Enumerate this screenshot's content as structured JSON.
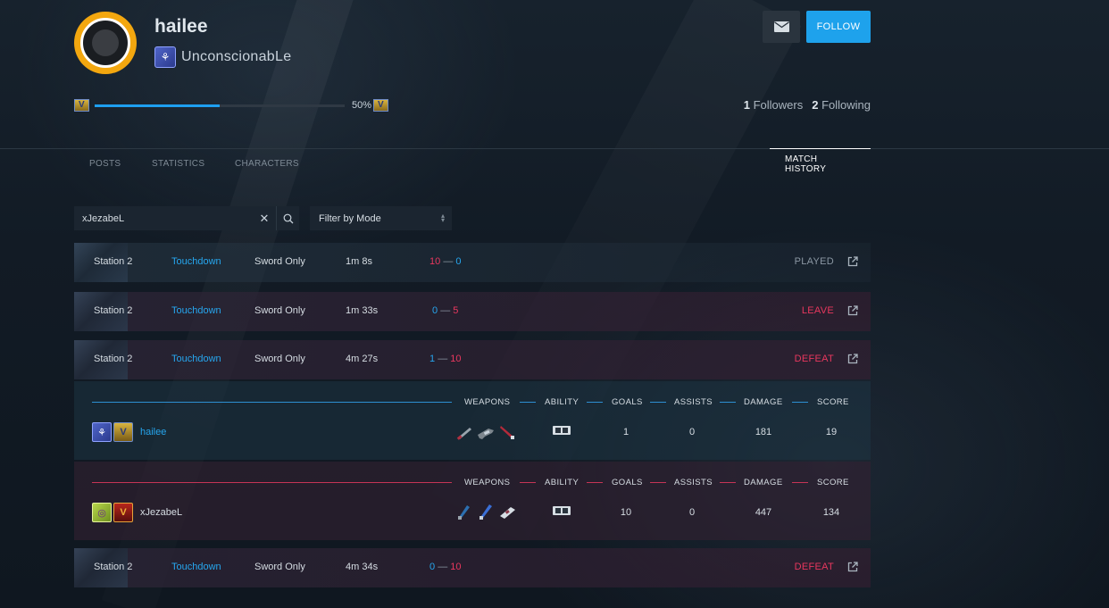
{
  "profile": {
    "username": "hailee",
    "clan_title": "UnconscionabLe",
    "xp_percent_label": "50%",
    "xp_fraction": 0.5,
    "followers_count": "1",
    "followers_label": "Followers",
    "following_count": "2",
    "following_label": "Following"
  },
  "actions": {
    "message_icon": "envelope-icon",
    "follow_label": "FOLLOW"
  },
  "tabs": [
    {
      "label": "POSTS"
    },
    {
      "label": "STATISTICS"
    },
    {
      "label": "CHARACTERS"
    },
    {
      "label": "MATCH HISTORY",
      "active": true
    }
  ],
  "filters": {
    "search_value": "xJezabeL",
    "filter_label": "Filter by Mode"
  },
  "colors": {
    "accent_blue": "#1ea2ec",
    "defeat_red": "#e8375e",
    "avatar_gold": "#f3a70f"
  },
  "matches": [
    {
      "map": "Station 2",
      "mode": "Touchdown",
      "type": "Sword Only",
      "duration": "1m 8s",
      "score_left": "10",
      "score_sep": "—",
      "score_right": "0",
      "result": "PLAYED"
    },
    {
      "map": "Station 2",
      "mode": "Touchdown",
      "type": "Sword Only",
      "duration": "1m 33s",
      "score_left": "0",
      "score_sep": "—",
      "score_right": "5",
      "result": "LEAVE"
    },
    {
      "map": "Station 2",
      "mode": "Touchdown",
      "type": "Sword Only",
      "duration": "4m 27s",
      "score_left": "1",
      "score_sep": "—",
      "score_right": "10",
      "result": "DEFEAT"
    },
    {
      "map": "Station 2",
      "mode": "Touchdown",
      "type": "Sword Only",
      "duration": "4m 34s",
      "score_left": "0",
      "score_sep": "—",
      "score_right": "10",
      "result": "DEFEAT"
    }
  ],
  "match_detail": {
    "headers": {
      "weapons": "WEAPONS",
      "ability": "ABILITY",
      "goals": "GOALS",
      "assists": "ASSISTS",
      "damage": "DAMAGE",
      "score": "SCORE"
    },
    "teams": [
      {
        "player": "hailee",
        "goals": "1",
        "assists": "0",
        "damage": "181",
        "score": "19"
      },
      {
        "player": "xJezabeL",
        "goals": "10",
        "assists": "0",
        "damage": "447",
        "score": "134"
      }
    ]
  }
}
